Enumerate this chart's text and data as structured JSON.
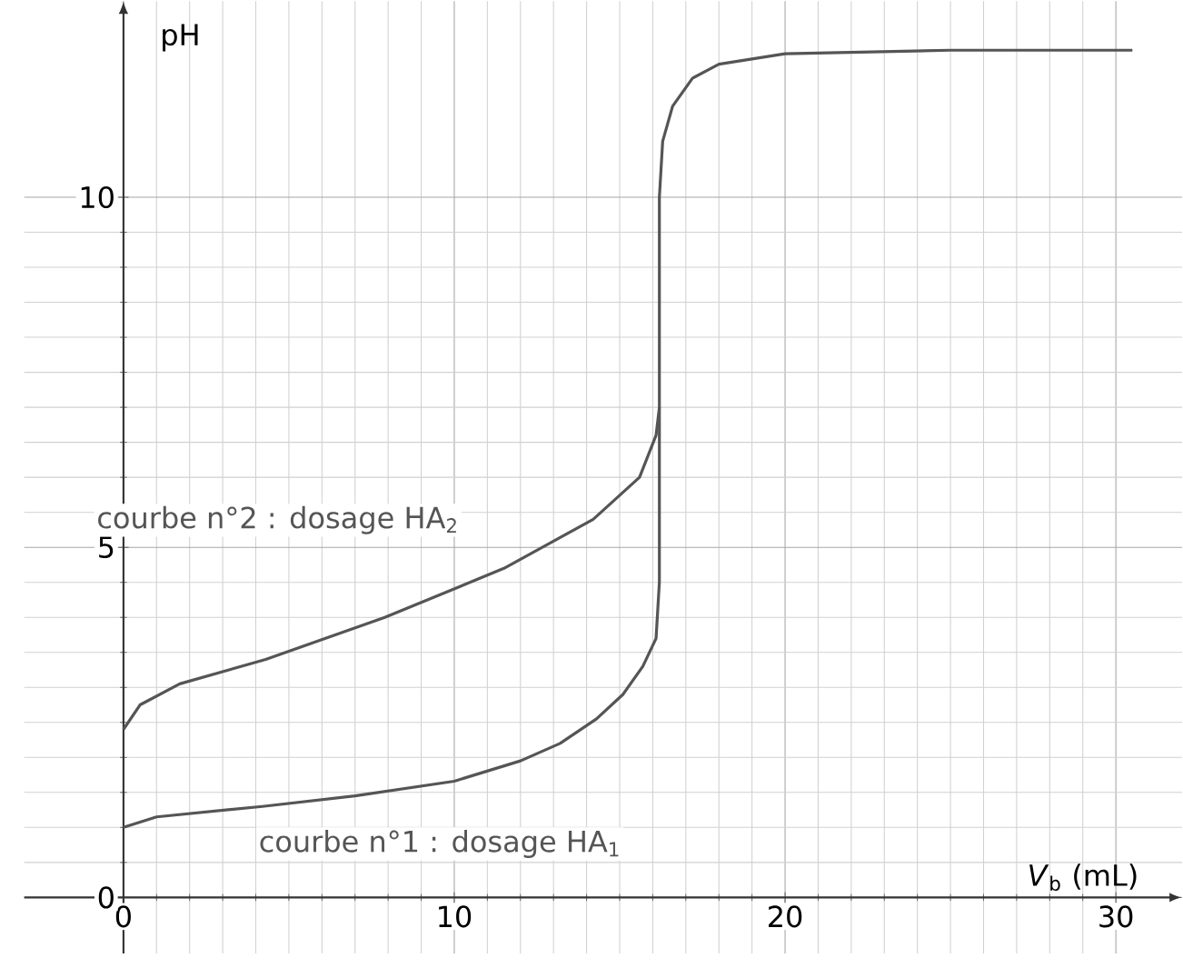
{
  "chart_data": {
    "type": "line",
    "xlabel": "*V*$_{b}$ (mL)",
    "ylabel": "pH",
    "xlim": [
      -3,
      32
    ],
    "ylim": [
      -0.8,
      12.8
    ],
    "xticks": [
      0,
      10,
      20,
      30
    ],
    "yticks": [
      0,
      5,
      10
    ],
    "grid": true,
    "series": [
      {
        "name": "courbe n°1 : dosage HA$_{1}$",
        "color": "#555555",
        "x": [
          0,
          1,
          4.2,
          7,
          10,
          12,
          13.2,
          14.3,
          15.1,
          15.7,
          16.1,
          16.2,
          16.2,
          16.3,
          16.6,
          17.2,
          18,
          20,
          25,
          30.5
        ],
        "values": [
          1.0,
          1.15,
          1.3,
          1.45,
          1.66,
          1.95,
          2.2,
          2.55,
          2.9,
          3.3,
          3.7,
          4.5,
          10,
          10.8,
          11.3,
          11.7,
          11.9,
          12.05,
          12.1,
          12.1
        ]
      },
      {
        "name": "courbe n°2 : dosage HA$_{2}$",
        "color": "#555555",
        "x": [
          0,
          0.5,
          1.7,
          4.3,
          7.9,
          11.5,
          14.2,
          15.6,
          16.1,
          16.2
        ],
        "values": [
          2.4,
          2.75,
          3.05,
          3.4,
          4.0,
          4.7,
          5.4,
          6.0,
          6.6,
          7.0
        ]
      }
    ]
  }
}
